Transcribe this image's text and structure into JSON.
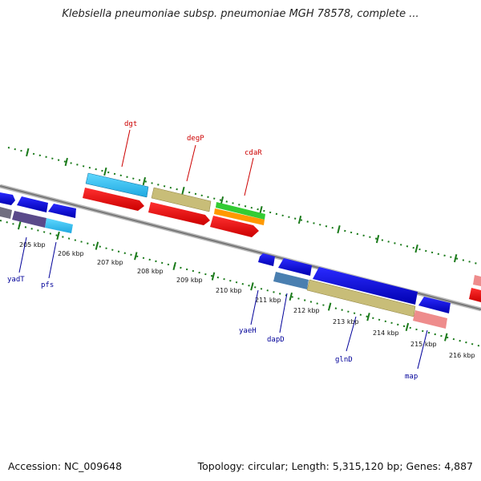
{
  "title": "Klebsiella pneumoniae subsp. pneumoniae MGH 78578, complete ...",
  "footer": {
    "accession": "Accession: NC_009648",
    "info": "Topology: circular; Length: 5,315,120 bp; Genes: 4,887"
  },
  "colors": {
    "backbone": "#888888",
    "ticks": "#1a7a1a",
    "forward_label": "#cc0000",
    "reverse_label": "#000099"
  },
  "kbp_labels": [
    "205 kbp",
    "206 kbp",
    "207 kbp",
    "208 kbp",
    "209 kbp",
    "210 kbp",
    "211 kbp",
    "212 kbp",
    "213 kbp",
    "214 kbp",
    "215 kbp",
    "216 kbp"
  ],
  "genes_forward": [
    {
      "name": "dgt"
    },
    {
      "name": "degP"
    },
    {
      "name": "cdaR"
    }
  ],
  "genes_reverse": [
    {
      "name": "yadT"
    },
    {
      "name": "pfs"
    },
    {
      "name": "yaeH"
    },
    {
      "name": "dapD"
    },
    {
      "name": "glnD"
    },
    {
      "name": "map"
    }
  ]
}
